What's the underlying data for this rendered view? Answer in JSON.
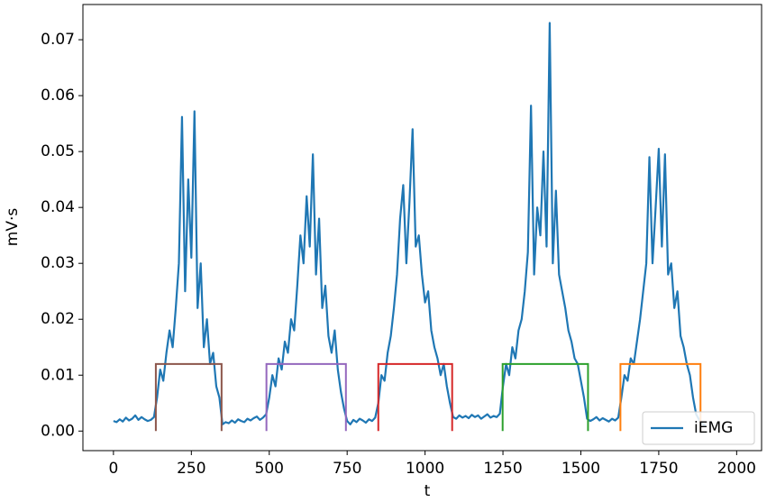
{
  "chart_data": {
    "type": "line",
    "xlabel": "t",
    "ylabel": "mV·s",
    "xlim": [
      -98,
      2080
    ],
    "ylim": [
      -0.0035,
      0.0763
    ],
    "xticks": [
      0,
      250,
      500,
      750,
      1000,
      1250,
      1500,
      1750,
      2000
    ],
    "yticks": [
      {
        "value": 0,
        "label": "0.00"
      },
      {
        "value": 0.01,
        "label": "0.01"
      },
      {
        "value": 0.02,
        "label": "0.02"
      },
      {
        "value": 0.03,
        "label": "0.03"
      },
      {
        "value": 0.04,
        "label": "0.04"
      },
      {
        "value": 0.05,
        "label": "0.05"
      },
      {
        "value": 0.06,
        "label": "0.06"
      },
      {
        "value": 0.07,
        "label": "0.07"
      }
    ],
    "legend": "lower right",
    "x": [
      0,
      10,
      20,
      30,
      40,
      50,
      60,
      70,
      80,
      90,
      100,
      110,
      120,
      130,
      140,
      150,
      160,
      170,
      180,
      190,
      200,
      210,
      220,
      230,
      240,
      250,
      260,
      270,
      280,
      290,
      300,
      310,
      320,
      330,
      340,
      350,
      360,
      370,
      380,
      390,
      400,
      410,
      420,
      430,
      440,
      450,
      460,
      470,
      480,
      490,
      500,
      510,
      520,
      530,
      540,
      550,
      560,
      570,
      580,
      590,
      600,
      610,
      620,
      630,
      640,
      650,
      660,
      670,
      680,
      690,
      700,
      710,
      720,
      730,
      740,
      750,
      760,
      770,
      780,
      790,
      800,
      810,
      820,
      830,
      840,
      850,
      860,
      870,
      880,
      890,
      900,
      910,
      920,
      930,
      940,
      950,
      960,
      970,
      980,
      990,
      1000,
      1010,
      1020,
      1030,
      1040,
      1050,
      1060,
      1070,
      1080,
      1090,
      1100,
      1110,
      1120,
      1130,
      1140,
      1150,
      1160,
      1170,
      1180,
      1190,
      1200,
      1210,
      1220,
      1230,
      1240,
      1250,
      1260,
      1270,
      1280,
      1290,
      1300,
      1310,
      1320,
      1330,
      1340,
      1350,
      1360,
      1370,
      1380,
      1390,
      1400,
      1410,
      1420,
      1430,
      1440,
      1450,
      1460,
      1470,
      1480,
      1490,
      1500,
      1510,
      1520,
      1530,
      1540,
      1550,
      1560,
      1570,
      1580,
      1590,
      1600,
      1610,
      1620,
      1630,
      1640,
      1650,
      1660,
      1670,
      1680,
      1690,
      1700,
      1710,
      1720,
      1730,
      1740,
      1750,
      1760,
      1770,
      1780,
      1790,
      1800,
      1810,
      1820,
      1830,
      1840,
      1850,
      1860,
      1870,
      1880,
      1890,
      1900
    ],
    "series": [
      {
        "name": "iEMG",
        "color": "#1f77b4",
        "values": [
          0.0018,
          0.0016,
          0.0021,
          0.0017,
          0.0024,
          0.0019,
          0.0022,
          0.0028,
          0.002,
          0.0025,
          0.0021,
          0.0018,
          0.002,
          0.0025,
          0.006,
          0.011,
          0.009,
          0.014,
          0.018,
          0.015,
          0.022,
          0.03,
          0.0562,
          0.025,
          0.045,
          0.031,
          0.0572,
          0.022,
          0.03,
          0.015,
          0.02,
          0.012,
          0.014,
          0.008,
          0.006,
          0.0012,
          0.0016,
          0.0014,
          0.0019,
          0.0015,
          0.0021,
          0.0018,
          0.0016,
          0.0022,
          0.0019,
          0.0023,
          0.0026,
          0.002,
          0.0024,
          0.003,
          0.006,
          0.01,
          0.008,
          0.013,
          0.011,
          0.016,
          0.014,
          0.02,
          0.018,
          0.026,
          0.035,
          0.03,
          0.042,
          0.033,
          0.0495,
          0.028,
          0.038,
          0.022,
          0.026,
          0.017,
          0.014,
          0.018,
          0.011,
          0.007,
          0.004,
          0.0018,
          0.0012,
          0.002,
          0.0016,
          0.0022,
          0.0019,
          0.0015,
          0.0021,
          0.0018,
          0.0024,
          0.005,
          0.01,
          0.009,
          0.014,
          0.017,
          0.022,
          0.028,
          0.038,
          0.044,
          0.03,
          0.041,
          0.054,
          0.033,
          0.035,
          0.028,
          0.023,
          0.025,
          0.018,
          0.015,
          0.013,
          0.01,
          0.012,
          0.008,
          0.005,
          0.0025,
          0.0022,
          0.0028,
          0.0024,
          0.0027,
          0.0023,
          0.0029,
          0.0025,
          0.0028,
          0.0022,
          0.0026,
          0.003,
          0.0024,
          0.0027,
          0.0025,
          0.0031,
          0.008,
          0.012,
          0.01,
          0.015,
          0.013,
          0.018,
          0.02,
          0.025,
          0.032,
          0.0582,
          0.028,
          0.04,
          0.035,
          0.05,
          0.033,
          0.073,
          0.03,
          0.043,
          0.028,
          0.025,
          0.022,
          0.018,
          0.016,
          0.013,
          0.012,
          0.009,
          0.006,
          0.0022,
          0.0018,
          0.0021,
          0.0025,
          0.0019,
          0.0023,
          0.002,
          0.0017,
          0.0022,
          0.0019,
          0.0024,
          0.006,
          0.01,
          0.009,
          0.013,
          0.012,
          0.016,
          0.02,
          0.025,
          0.03,
          0.049,
          0.03,
          0.04,
          0.0505,
          0.033,
          0.0495,
          0.028,
          0.03,
          0.022,
          0.025,
          0.017,
          0.015,
          0.012,
          0.01,
          0.006,
          0.003,
          0.002,
          0.0013,
          0.001
        ]
      }
    ],
    "segments": [
      {
        "start": 136,
        "end": 347,
        "height": 0.012,
        "color": "#8c564b"
      },
      {
        "start": 491,
        "end": 746,
        "height": 0.012,
        "color": "#9467bd"
      },
      {
        "start": 850,
        "end": 1087,
        "height": 0.012,
        "color": "#d62728"
      },
      {
        "start": 1249,
        "end": 1523,
        "height": 0.012,
        "color": "#2ca02c"
      },
      {
        "start": 1627,
        "end": 1884,
        "height": 0.012,
        "color": "#ff7f0e"
      }
    ]
  }
}
